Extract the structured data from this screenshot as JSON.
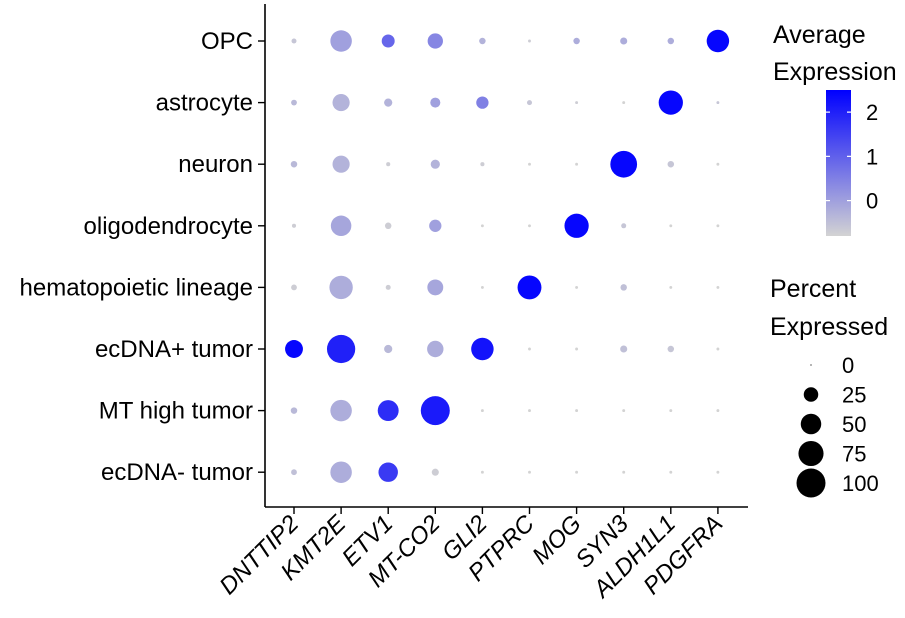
{
  "chart_data": {
    "type": "dot",
    "genes": [
      "DNTTIP2",
      "KMT2E",
      "ETV1",
      "MT-CO2",
      "GLI2",
      "PTPRC",
      "MOG",
      "SYN3",
      "ALDH1L1",
      "PDGFRA"
    ],
    "cell_types": [
      "OPC",
      "astrocyte",
      "neuron",
      "oligodendrocyte",
      "hematopoietic lineage",
      "ecDNA+ tumor",
      "MT high tumor",
      "ecDNA- tumor"
    ],
    "average_expression": [
      [
        -0.6,
        0.0,
        0.9,
        0.4,
        -0.3,
        -0.7,
        -0.2,
        -0.2,
        -0.2,
        2.4
      ],
      [
        -0.4,
        -0.3,
        -0.3,
        0.0,
        0.5,
        -0.6,
        -0.7,
        -0.8,
        2.4,
        -0.6
      ],
      [
        -0.4,
        -0.3,
        -0.7,
        -0.3,
        -0.7,
        -0.8,
        -0.8,
        2.4,
        -0.6,
        -0.8
      ],
      [
        -0.7,
        -0.1,
        -0.7,
        0.0,
        -0.8,
        -0.8,
        2.4,
        -0.6,
        -0.8,
        -0.8
      ],
      [
        -0.7,
        -0.2,
        -0.7,
        -0.1,
        -0.8,
        2.4,
        -0.8,
        -0.5,
        -0.8,
        -0.8
      ],
      [
        2.4,
        2.0,
        -0.4,
        -0.2,
        2.2,
        -0.8,
        -0.8,
        -0.5,
        -0.6,
        -0.8
      ],
      [
        -0.4,
        -0.2,
        1.8,
        2.1,
        -0.8,
        -0.8,
        -0.8,
        -0.8,
        -0.8,
        -0.8
      ],
      [
        -0.5,
        -0.2,
        1.6,
        -0.7,
        -0.8,
        -0.8,
        -0.8,
        -0.8,
        -0.8,
        -0.8
      ]
    ],
    "percent_expressed": [
      [
        3,
        55,
        20,
        28,
        5,
        1,
        5,
        6,
        5,
        60
      ],
      [
        4,
        35,
        8,
        12,
        18,
        3,
        1,
        1,
        70,
        1
      ],
      [
        5,
        35,
        2,
        10,
        2,
        1,
        1,
        85,
        5,
        1
      ],
      [
        2,
        50,
        5,
        18,
        1,
        1,
        70,
        3,
        1,
        1
      ],
      [
        4,
        65,
        3,
        30,
        1,
        68,
        1,
        5,
        1,
        1
      ],
      [
        38,
        95,
        8,
        32,
        60,
        1,
        1,
        6,
        5,
        1
      ],
      [
        5,
        55,
        52,
        100,
        1,
        1,
        1,
        1,
        1,
        1
      ],
      [
        4,
        55,
        45,
        6,
        1,
        1,
        1,
        1,
        1,
        1
      ]
    ],
    "color_scale": {
      "title": [
        "Average",
        "Expression"
      ],
      "ticks": [
        2,
        1,
        0
      ],
      "domain": [
        -0.8,
        2.5
      ],
      "low_color": "#D3D3D3",
      "high_color": "#0000FF"
    },
    "size_legend": {
      "title": [
        "Percent",
        "Expressed"
      ],
      "values": [
        0,
        25,
        50,
        75,
        100
      ]
    }
  }
}
